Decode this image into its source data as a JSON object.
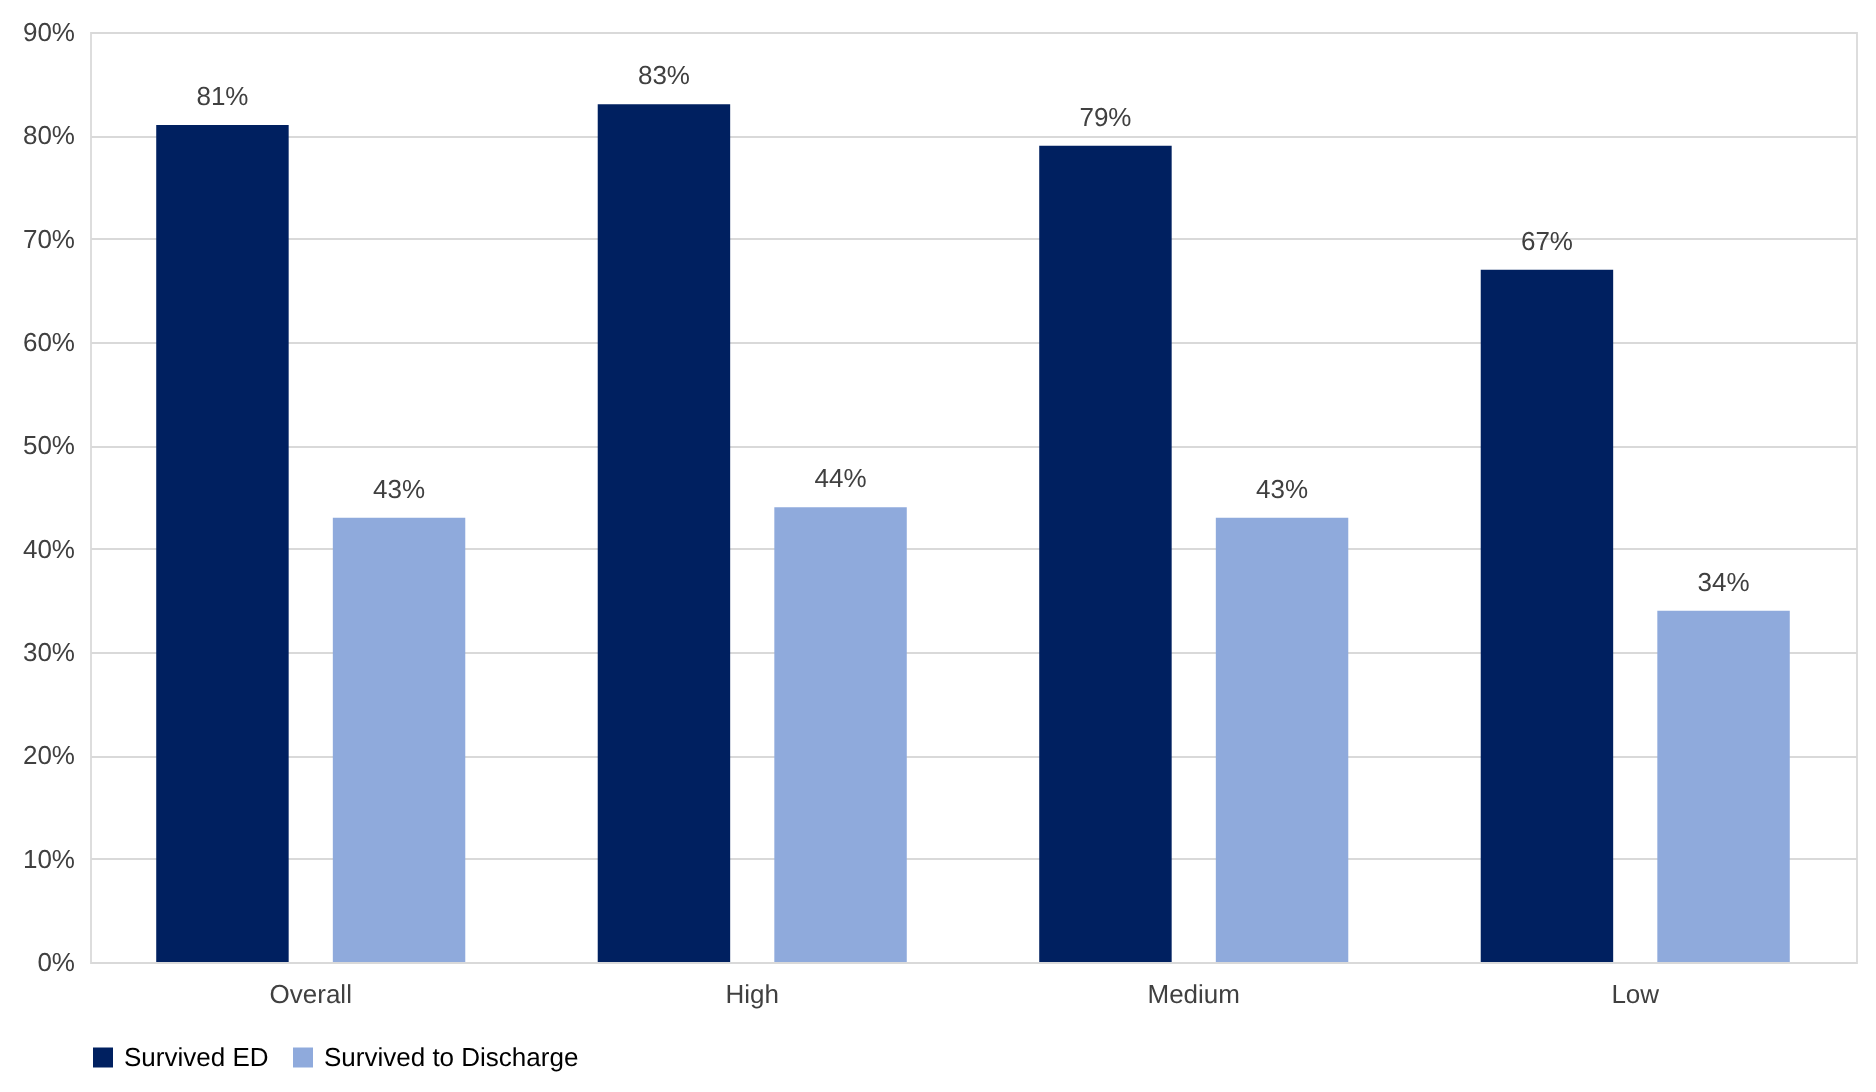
{
  "chart_data": {
    "type": "bar",
    "categories": [
      "Overall",
      "High",
      "Medium",
      "Low"
    ],
    "series": [
      {
        "name": "Survived ED",
        "color": "#002060",
        "values": [
          81,
          83,
          79,
          67
        ],
        "value_labels": [
          "81%",
          "83%",
          "79%",
          "67%"
        ]
      },
      {
        "name": "Survived to Discharge",
        "color": "#8faadc",
        "values": [
          43,
          44,
          43,
          34
        ],
        "value_labels": [
          "43%",
          "44%",
          "43%",
          "34%"
        ]
      }
    ],
    "ylim": [
      0,
      90
    ],
    "yticks": [
      {
        "value": 0,
        "label": "0%"
      },
      {
        "value": 10,
        "label": "10%"
      },
      {
        "value": 20,
        "label": "20%"
      },
      {
        "value": 30,
        "label": "30%"
      },
      {
        "value": 40,
        "label": "40%"
      },
      {
        "value": 50,
        "label": "50%"
      },
      {
        "value": 60,
        "label": "60%"
      },
      {
        "value": 70,
        "label": "70%"
      },
      {
        "value": 80,
        "label": "80%"
      },
      {
        "value": 90,
        "label": "90%"
      }
    ],
    "grid": "y",
    "legend": "bottom"
  }
}
